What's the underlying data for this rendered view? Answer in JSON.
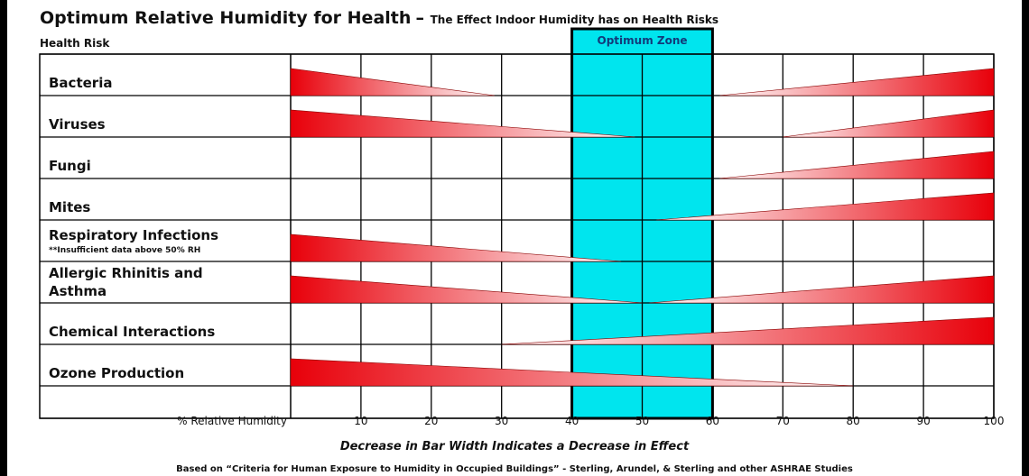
{
  "chart_data": {
    "type": "bar",
    "title": "Optimum Relative Humidity for Health",
    "subtitle": "The Effect Indoor Humidity has on Health Risks",
    "row_header": "Health Risk",
    "xlabel": "% Relative Humidity",
    "xlim": [
      0,
      100
    ],
    "x_ticks": [
      10,
      20,
      30,
      40,
      50,
      60,
      70,
      80,
      90,
      100
    ],
    "optimum_zone": {
      "label": "Optimum Zone",
      "range": [
        40,
        60
      ],
      "color": "#00e5ee"
    },
    "bar_color": "#e8000a",
    "categories": [
      {
        "label": [
          "Bacteria"
        ],
        "note": "",
        "wedges": [
          {
            "from": 0,
            "to": 29
          },
          {
            "from": 100,
            "to": 61
          }
        ]
      },
      {
        "label": [
          "Viruses"
        ],
        "note": "",
        "wedges": [
          {
            "from": 0,
            "to": 49
          },
          {
            "from": 100,
            "to": 70
          }
        ]
      },
      {
        "label": [
          "Fungi"
        ],
        "note": "",
        "wedges": [
          {
            "from": 100,
            "to": 61
          }
        ]
      },
      {
        "label": [
          "Mites"
        ],
        "note": "",
        "wedges": [
          {
            "from": 100,
            "to": 52
          }
        ]
      },
      {
        "label": [
          "Respiratory Infections"
        ],
        "note": "**Insufficient data above 50% RH",
        "wedges": [
          {
            "from": 0,
            "to": 47
          }
        ]
      },
      {
        "label": [
          "Allergic Rhinitis and",
          "Asthma"
        ],
        "note": "",
        "wedges": [
          {
            "from": 0,
            "to": 50
          },
          {
            "from": 100,
            "to": 51
          }
        ]
      },
      {
        "label": [
          "Chemical Interactions"
        ],
        "note": "",
        "wedges": [
          {
            "from": 100,
            "to": 30
          }
        ]
      },
      {
        "label": [
          "Ozone Production"
        ],
        "note": "",
        "wedges": [
          {
            "from": 0,
            "to": 80
          }
        ]
      }
    ],
    "caption": "Decrease in Bar Width Indicates a Decrease in Effect",
    "source": "Based on “Criteria for Human Exposure to Humidity in Occupied Buildings” - Sterling, Arundel, & Sterling and other ASHRAE Studies"
  }
}
